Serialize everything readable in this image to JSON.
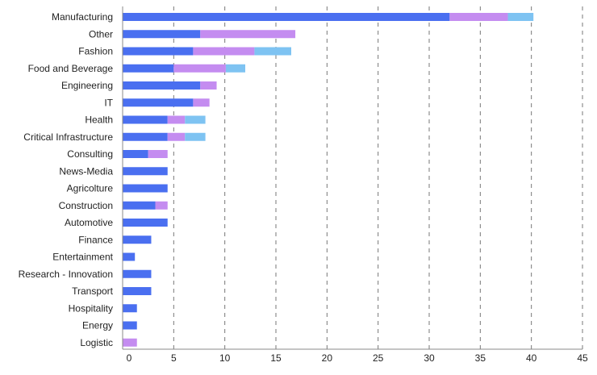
{
  "chart_data": {
    "type": "bar",
    "orientation": "horizontal",
    "stacked": true,
    "title": "",
    "xlabel": "",
    "ylabel": "",
    "xlim": [
      0,
      45
    ],
    "x_ticks": [
      0,
      5,
      10,
      15,
      20,
      25,
      30,
      35,
      40,
      45
    ],
    "grid": "vertical dashed",
    "legend": "none",
    "colors": [
      "#4a6ff0",
      "#c48cf0",
      "#7ec3f2"
    ],
    "categories": [
      "Manufacturing",
      "Other",
      "Fashion",
      "Food and Beverage",
      "Engineering",
      "IT",
      "Health",
      "Critical Infrastructure",
      "Consulting",
      "News-Media",
      "Agricolture",
      "Construction",
      "Automotive",
      "Finance",
      "Entertainment",
      "Research - Innovation",
      "Transport",
      "Hospitality",
      "Energy",
      "Logistic"
    ],
    "series": [
      {
        "values": [
          32,
          7.6,
          6.9,
          5,
          7.6,
          6.9,
          4.4,
          4.4,
          2.5,
          4.4,
          4.4,
          3.2,
          4.4,
          2.8,
          1.2,
          2.8,
          2.8,
          1.4,
          1.4,
          0
        ]
      },
      {
        "values": [
          5.7,
          9.3,
          6,
          5.1,
          1.6,
          1.6,
          1.7,
          1.7,
          1.9,
          0,
          0,
          1.2,
          0,
          0,
          0,
          0,
          0,
          0,
          0,
          1.4
        ]
      },
      {
        "values": [
          2.5,
          0,
          3.6,
          1.9,
          0,
          0,
          2,
          2,
          0,
          0,
          0,
          0,
          0,
          0,
          0,
          0,
          0,
          0,
          0,
          0
        ]
      }
    ]
  }
}
